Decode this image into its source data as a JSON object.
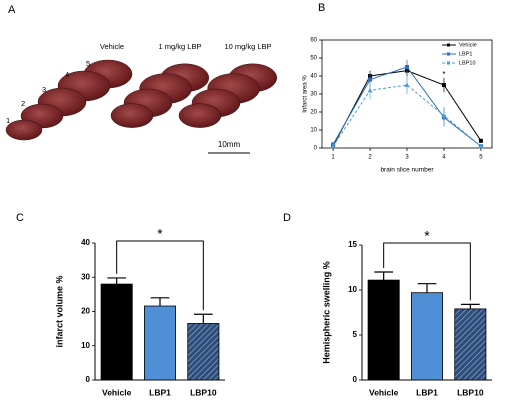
{
  "panel_a": {
    "label": "A",
    "groups": [
      "Vehicle",
      "1 mg/kg LBP",
      "10 mg/kg LBP"
    ],
    "slice_numbers": [
      "1",
      "2",
      "3",
      "4",
      "5"
    ],
    "scale_bar": "10mm"
  },
  "chart_data": [
    {
      "type": "line",
      "panel_label": "B",
      "xlabel": "brain slice number",
      "ylabel": "Infarct area %",
      "x": [
        1,
        2,
        3,
        4,
        5
      ],
      "xlim": [
        0.7,
        5.3
      ],
      "xticks": [
        1,
        2,
        3,
        4,
        5
      ],
      "ylim": [
        0,
        60
      ],
      "yticks": [
        0,
        10,
        20,
        30,
        40,
        50,
        60
      ],
      "legend": "top-right",
      "annotation": "*",
      "series": [
        {
          "name": "Vehicle",
          "color": "#000000",
          "marker": "square",
          "dashed": false,
          "values": [
            1,
            40,
            43,
            35,
            4
          ],
          "errors": [
            1,
            3,
            3,
            4,
            1
          ]
        },
        {
          "name": "LBP1",
          "color": "#2f6fb5",
          "marker": "square",
          "dashed": false,
          "values": [
            2,
            38,
            45,
            17,
            1
          ],
          "errors": [
            1,
            4,
            4,
            5,
            1
          ]
        },
        {
          "name": "LBP10",
          "color": "#4a9fd8",
          "marker": "triangle",
          "dashed": true,
          "values": [
            1,
            32,
            35,
            18,
            1
          ],
          "errors": [
            1,
            5,
            5,
            5,
            1
          ]
        }
      ]
    },
    {
      "type": "bar",
      "panel_label": "C",
      "ylabel": "infarct volume %",
      "categories": [
        "Vehicle",
        "LBP1",
        "LBP10"
      ],
      "values": [
        28,
        21.6,
        16.5
      ],
      "errors": [
        1.8,
        2.4,
        2.7
      ],
      "colors": [
        "#000000",
        "#4f8fd6",
        "#2e4d7a"
      ],
      "hatch": [
        false,
        false,
        true
      ],
      "ylim": [
        0,
        40
      ],
      "yticks": [
        0,
        10,
        20,
        30,
        40
      ],
      "annotation": "*"
    },
    {
      "type": "bar",
      "panel_label": "D",
      "ylabel": "Hemispheric swelling %",
      "categories": [
        "Vehicle",
        "LBP1",
        "LBP10"
      ],
      "values": [
        11.1,
        9.7,
        7.9
      ],
      "errors": [
        0.9,
        1.0,
        0.5
      ],
      "colors": [
        "#000000",
        "#4f8fd6",
        "#2e4d7a"
      ],
      "hatch": [
        false,
        false,
        true
      ],
      "ylim": [
        0,
        15
      ],
      "yticks": [
        0,
        5,
        10,
        15
      ],
      "annotation": "*"
    }
  ]
}
